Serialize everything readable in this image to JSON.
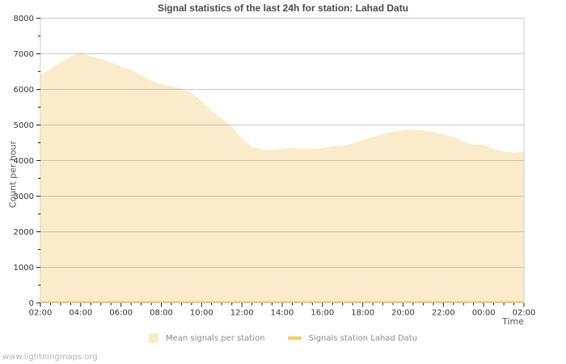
{
  "title": "Signal statistics of the last 24h for station: Lahad Datu",
  "watermark": "www.lightningmaps.org",
  "axes": {
    "y_label": "Count per hour",
    "x_label": "Time"
  },
  "legend": [
    {
      "label": "Mean signals per station",
      "swatch": "square",
      "color": "#FAECCA"
    },
    {
      "label": "Signals station Lahad Datu",
      "swatch": "line",
      "color": "#F6CF5C"
    }
  ],
  "colors": {
    "area_fill": "#FAECCA",
    "station_line": "#F6CF5C",
    "grid": "#8c8c8c",
    "frame": "#cccccc",
    "tick": "#222222",
    "tick_label": "#333333"
  },
  "chart_data": {
    "type": "area",
    "title": "Signal statistics of the last 24h for station: Lahad Datu",
    "xlabel": "Time",
    "ylabel": "Count per hour",
    "ylim": [
      0,
      8000
    ],
    "ytick_step": 1000,
    "ytick_minor_step": 500,
    "grid": true,
    "legend_position": "bottom",
    "x": [
      "02:00",
      "02:30",
      "03:00",
      "03:30",
      "04:00",
      "04:30",
      "05:00",
      "05:30",
      "06:00",
      "06:30",
      "07:00",
      "07:30",
      "08:00",
      "08:30",
      "09:00",
      "09:30",
      "10:00",
      "10:30",
      "11:00",
      "11:30",
      "12:00",
      "12:30",
      "13:00",
      "13:30",
      "14:00",
      "14:30",
      "15:00",
      "15:30",
      "16:00",
      "16:30",
      "17:00",
      "17:30",
      "18:00",
      "18:30",
      "19:00",
      "19:30",
      "20:00",
      "20:30",
      "21:00",
      "21:30",
      "22:00",
      "22:30",
      "23:00",
      "23:30",
      "00:00",
      "00:30",
      "01:00",
      "01:30",
      "02:00"
    ],
    "xtick_major_every": 4,
    "series": [
      {
        "name": "Mean signals per station",
        "type": "area",
        "color": "#FAECCA",
        "values": [
          6400,
          6580,
          6760,
          6920,
          7040,
          6930,
          6860,
          6760,
          6640,
          6540,
          6400,
          6250,
          6140,
          6090,
          6020,
          5900,
          5680,
          5380,
          5190,
          4960,
          4620,
          4390,
          4310,
          4300,
          4320,
          4360,
          4340,
          4330,
          4360,
          4400,
          4420,
          4480,
          4580,
          4660,
          4740,
          4810,
          4850,
          4870,
          4850,
          4800,
          4740,
          4660,
          4540,
          4440,
          4450,
          4320,
          4260,
          4220,
          4260
        ]
      },
      {
        "name": "Signals station Lahad Datu",
        "type": "line",
        "color": "#F6CF5C",
        "constant_value": 0
      }
    ]
  }
}
